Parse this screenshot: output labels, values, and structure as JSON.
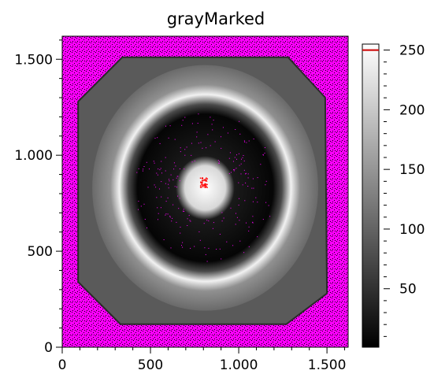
{
  "chart_data": {
    "type": "heatmap",
    "title": "grayMarked",
    "xlabel": "",
    "ylabel": "",
    "xlim": [
      0,
      1620
    ],
    "ylim": [
      0,
      1620
    ],
    "x_ticks": [
      0,
      500,
      1000,
      1500
    ],
    "x_tick_labels": [
      "0",
      "500",
      "1.000",
      "1.500"
    ],
    "y_ticks": [
      0,
      500,
      1000,
      1500
    ],
    "y_tick_labels": [
      "0",
      "500",
      "1.000",
      "1.500"
    ],
    "colorbar": {
      "min": 1,
      "max": 255,
      "ticks": [
        50,
        100,
        150,
        200,
        250
      ],
      "tick_labels": [
        "50",
        "100",
        "150",
        "200",
        "250"
      ],
      "colormap": [
        "#000000",
        "#ffffff"
      ],
      "marker_value": 250,
      "marker_color": "#cc0000"
    },
    "overlay_colors": {
      "background_low": "#ff00ff",
      "high_marked": "#ff0000"
    }
  }
}
